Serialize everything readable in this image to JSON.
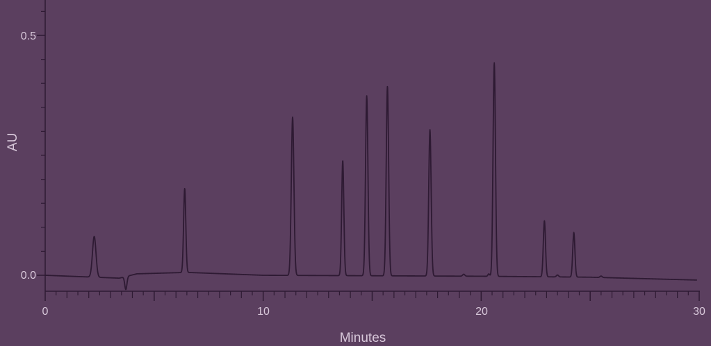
{
  "chart_data": {
    "type": "line",
    "title": "",
    "xlabel": "Minutes",
    "ylabel": "AU",
    "xlim": [
      0,
      30
    ],
    "ylim": [
      -0.03,
      0.58
    ],
    "x_ticks": [
      "0",
      "10",
      "20",
      "30"
    ],
    "y_ticks": [
      "0.0",
      "0.5"
    ],
    "grid": false,
    "colors": {
      "background": "#5b3f5f",
      "trace": "#2e1a33",
      "axis": "#2e1a33",
      "text": "#d8c8da"
    },
    "series": [
      {
        "baseline": [
          [
            0,
            0.0
          ],
          [
            3.4,
            -0.006
          ],
          [
            4.2,
            0.003
          ],
          [
            6.5,
            0.006
          ],
          [
            10.0,
            0.0
          ],
          [
            15.0,
            -0.001
          ],
          [
            20.0,
            -0.002
          ],
          [
            25.0,
            -0.004
          ],
          [
            29.9,
            -0.01
          ]
        ],
        "peaks": [
          {
            "rt": 2.25,
            "height": 0.085,
            "width": 0.08
          },
          {
            "rt": 3.7,
            "height": -0.027,
            "width": 0.05
          },
          {
            "rt": 6.4,
            "height": 0.175,
            "width": 0.05
          },
          {
            "rt": 11.35,
            "height": 0.33,
            "width": 0.06
          },
          {
            "rt": 13.65,
            "height": 0.24,
            "width": 0.05
          },
          {
            "rt": 14.75,
            "height": 0.375,
            "width": 0.055
          },
          {
            "rt": 15.7,
            "height": 0.395,
            "width": 0.055
          },
          {
            "rt": 17.65,
            "height": 0.305,
            "width": 0.055
          },
          {
            "rt": 19.2,
            "height": 0.004,
            "width": 0.05
          },
          {
            "rt": 20.35,
            "height": 0.005,
            "width": 0.04
          },
          {
            "rt": 20.6,
            "height": 0.445,
            "width": 0.055
          },
          {
            "rt": 22.9,
            "height": 0.117,
            "width": 0.05
          },
          {
            "rt": 23.5,
            "height": 0.004,
            "width": 0.05
          },
          {
            "rt": 24.25,
            "height": 0.093,
            "width": 0.05
          },
          {
            "rt": 25.5,
            "height": 0.003,
            "width": 0.05
          }
        ]
      }
    ]
  }
}
